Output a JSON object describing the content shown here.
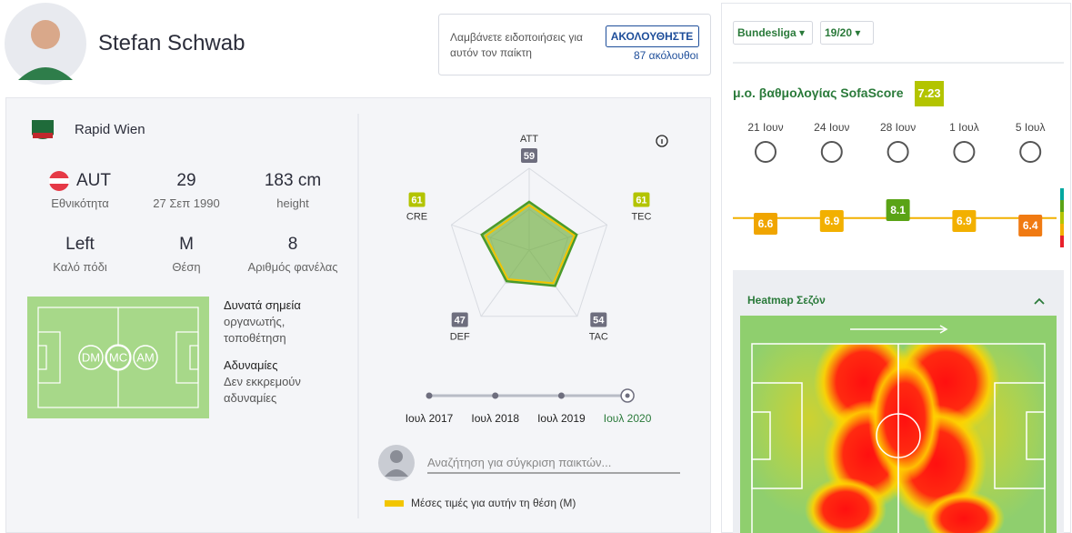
{
  "player": {
    "name": "Stefan Schwab",
    "team": "Rapid Wien"
  },
  "follow": {
    "text": "Λαμβάνετε ειδοποιήσεις για αυτόν τον παίκτη",
    "button": "ΑΚΟΛΟΥΘΗΣΤΕ",
    "followers": "87 ακόλουθοι"
  },
  "info": [
    {
      "value": "AUT",
      "label": "Εθνικότητα"
    },
    {
      "value": "29",
      "label": "27 Σεπ 1990"
    },
    {
      "value": "183 cm",
      "label": "height"
    },
    {
      "value": "Left",
      "label": "Καλό πόδι"
    },
    {
      "value": "M",
      "label": "Θέση"
    },
    {
      "value": "8",
      "label": "Αριθμός φανέλας"
    }
  ],
  "positions": [
    "DM",
    "MC",
    "AM"
  ],
  "strengths": {
    "title": "Δυνατά σημεία",
    "text": "οργανωτής, τοποθέτηση"
  },
  "weaknesses": {
    "title": "Αδυναμίες",
    "text": "Δεν εκκρεμούν αδυναμίες"
  },
  "radar": {
    "axes": [
      "ATT",
      "TEC",
      "TAC",
      "DEF",
      "CRE"
    ],
    "values": [
      59,
      61,
      54,
      47,
      61
    ],
    "colors": [
      "#6e6e7e",
      "#b3c400",
      "#6e6e7e",
      "#6e6e7e",
      "#b3c400"
    ],
    "range": [
      0,
      100
    ],
    "average": {
      "label": "Μέσες τιμές για αυτήν τη θέση (M)",
      "values": [
        55,
        58,
        50,
        44,
        56
      ],
      "color": "#f2c500"
    },
    "color": "#6fae3c"
  },
  "timeline": [
    "Ιουλ 2017",
    "Ιουλ 2018",
    "Ιουλ 2019",
    "Ιουλ 2020"
  ],
  "search": {
    "placeholder": "Αναζήτηση για σύγκριση παικτών..."
  },
  "filters": {
    "league": "Bundesliga",
    "season": "19/20"
  },
  "rating": {
    "title": "μ.ο. βαθμολογίας SofaScore",
    "average": 7.23,
    "ylim": [
      4,
      10
    ],
    "dates": [
      "21 Ιουν",
      "24 Ιουν",
      "28 Ιουν",
      "1 Ιουλ",
      "5 Ιουλ"
    ],
    "values": [
      6.6,
      6.9,
      8.1,
      6.9,
      6.4
    ],
    "colors": [
      "#f0a500",
      "#f2b000",
      "#5aa316",
      "#f2b000",
      "#f07a12"
    ]
  },
  "heatmap": {
    "title": "Heatmap Σεζόν"
  }
}
